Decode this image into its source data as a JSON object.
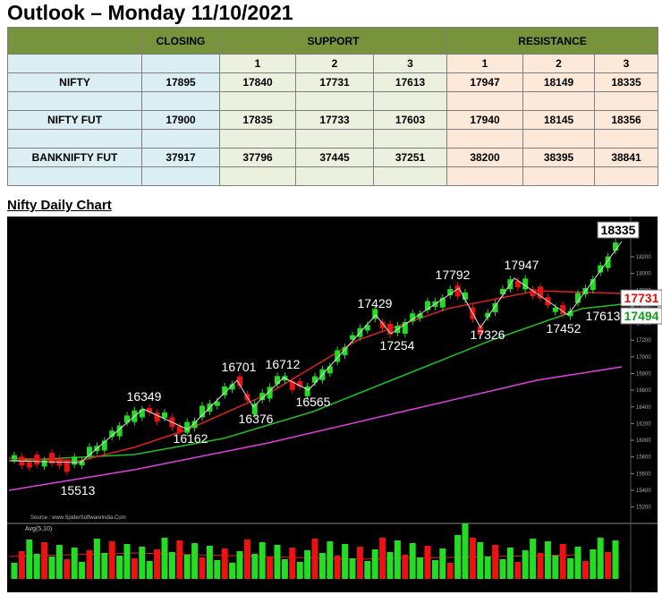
{
  "header": {
    "title": "Outlook – Monday 11/10/2021"
  },
  "table": {
    "headers": [
      "CLOSING",
      "SUPPORT",
      "RESISTANCE"
    ],
    "subheaders": [
      "1",
      "2",
      "3",
      "1",
      "2",
      "3"
    ],
    "rows": [
      [
        "NIFTY",
        17895,
        17840,
        17731,
        17613,
        17947,
        18149,
        18335
      ],
      [
        "NIFTY FUT",
        17900,
        17835,
        17733,
        17603,
        17940,
        18145,
        18356
      ],
      [
        "BANKNIFTY FUT",
        37917,
        37796,
        37445,
        37251,
        38200,
        38395,
        38841
      ]
    ]
  },
  "chart": {
    "title": "Nifty Daily Chart",
    "annotations": [
      18335,
      17731,
      17494,
      16349,
      16162,
      15513,
      16701,
      16376,
      16712,
      16565,
      17429,
      17254,
      17792,
      17326,
      17947,
      17452,
      17613
    ],
    "price_axis": [
      18200,
      18000,
      17800,
      17600,
      17400,
      17200,
      17000,
      16800,
      16600,
      16400,
      16200,
      16000,
      15800,
      15600,
      15400,
      15200
    ],
    "source": "Source : www.SpiderSoftwareIndia.Com",
    "volume_label": "Avg(5,10)"
  }
}
